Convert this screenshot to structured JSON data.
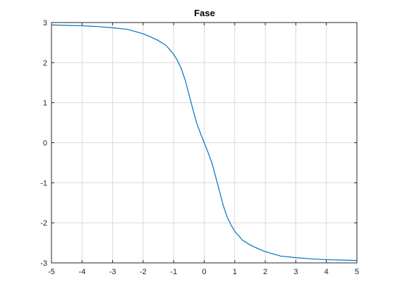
{
  "chart_data": {
    "type": "line",
    "title": "Fase",
    "xlabel": "",
    "ylabel": "",
    "xlim": [
      -5,
      5
    ],
    "ylim": [
      -3,
      3
    ],
    "x_ticks": [
      -5,
      -4,
      -3,
      -2,
      -1,
      0,
      1,
      2,
      3,
      4,
      5
    ],
    "y_ticks": [
      -3,
      -2,
      -1,
      0,
      1,
      2,
      3
    ],
    "grid": true,
    "colors": {
      "line": "#0072BD",
      "grid": "#d9d9d9",
      "axis": "#262626"
    },
    "series": [
      {
        "x": [
          -5,
          -4.5,
          -4,
          -3.5,
          -3,
          -2.5,
          -2,
          -1.75,
          -1.5,
          -1.25,
          -1,
          -0.875,
          -0.75,
          -0.625,
          -0.5,
          -0.375,
          -0.25,
          -0.125,
          0,
          0.125,
          0.25,
          0.375,
          0.5,
          0.625,
          0.75,
          0.875,
          1,
          1.25,
          1.5,
          1.75,
          2,
          2.5,
          3,
          3.5,
          4,
          4.5,
          5
        ],
        "y": [
          2.94,
          2.93,
          2.92,
          2.9,
          2.87,
          2.83,
          2.72,
          2.64,
          2.55,
          2.43,
          2.21,
          2.05,
          1.85,
          1.57,
          1.21,
          0.85,
          0.5,
          0.24,
          0.0,
          -0.24,
          -0.5,
          -0.85,
          -1.21,
          -1.57,
          -1.85,
          -2.05,
          -2.21,
          -2.43,
          -2.55,
          -2.64,
          -2.72,
          -2.83,
          -2.87,
          -2.9,
          -2.92,
          -2.93,
          -2.94
        ]
      }
    ]
  }
}
